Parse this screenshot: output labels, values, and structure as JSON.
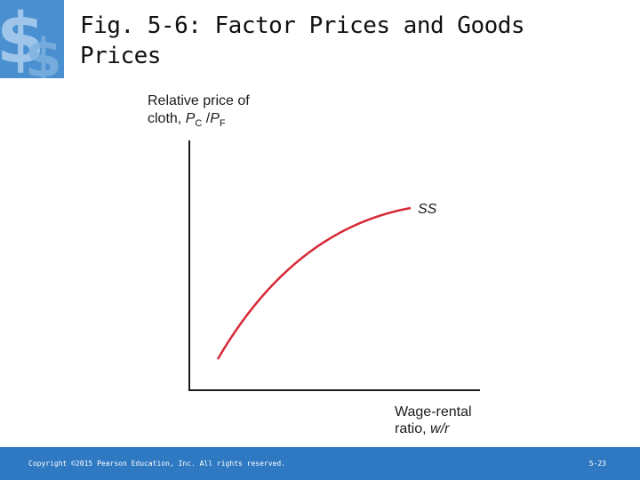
{
  "title": "Fig. 5-6:  Factor Prices and Goods Prices",
  "logo_icon": "dollar-sign-icon",
  "diagram": {
    "y_axis_line1": "Relative price of",
    "y_axis_line2_prefix": "cloth, ",
    "y_axis_p1": "P",
    "y_axis_sub1": "C",
    "y_axis_slash": " /",
    "y_axis_p2": "P",
    "y_axis_sub2": "F",
    "x_axis_line1": "Wage-rental",
    "x_axis_line2_prefix": "ratio, ",
    "x_axis_var": "w/r",
    "curve_label": "SS",
    "curve_color": "#d62a36"
  },
  "footer": {
    "copyright": "Copyright ©2015 Pearson Education, Inc. All rights reserved.",
    "slide_number": "5-23",
    "color": "#2f79c2"
  }
}
